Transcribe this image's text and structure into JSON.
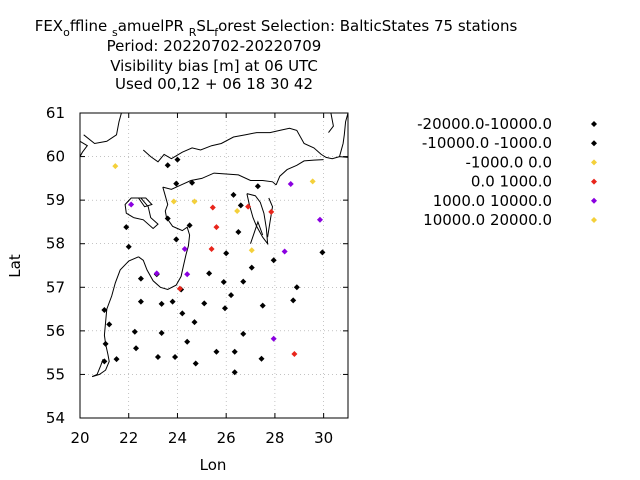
{
  "title_lines": [
    "FEX_o ffline _s amuelPR _R SL_f orest   Selection: BalticStates     75 stations",
    "Period: 20220702-20220709",
    "Visibility bias [m] at  06 UTC",
    "Used  00,12  + 06 18 30 42"
  ],
  "chart_data": {
    "type": "scatter",
    "xlabel": "Lon",
    "ylabel": "Lat",
    "xlim": [
      20,
      31
    ],
    "ylim": [
      54,
      61
    ],
    "xticks": [
      20,
      22,
      24,
      26,
      28,
      30
    ],
    "yticks": [
      54,
      55,
      56,
      57,
      58,
      59,
      60,
      61
    ],
    "grid": true,
    "legend_position": "right",
    "series": [
      {
        "name": "-20000.0-10000.0",
        "color": "#000000",
        "points": []
      },
      {
        "name": "-10000.0 -1000.0",
        "color": "#000000",
        "points": [
          [
            23.6,
            59.8
          ],
          [
            24.0,
            59.93
          ],
          [
            23.95,
            59.38
          ],
          [
            24.6,
            59.4
          ],
          [
            26.3,
            59.12
          ],
          [
            27.3,
            59.32
          ],
          [
            21.9,
            58.38
          ],
          [
            22.0,
            57.93
          ],
          [
            23.6,
            58.58
          ],
          [
            23.95,
            58.1
          ],
          [
            24.5,
            58.42
          ],
          [
            26.0,
            57.78
          ],
          [
            26.5,
            58.27
          ],
          [
            26.6,
            58.88
          ],
          [
            27.05,
            57.45
          ],
          [
            27.95,
            57.62
          ],
          [
            29.95,
            57.8
          ],
          [
            22.5,
            57.2
          ],
          [
            23.15,
            57.3
          ],
          [
            24.15,
            56.95
          ],
          [
            25.3,
            57.32
          ],
          [
            25.9,
            57.12
          ],
          [
            26.7,
            57.13
          ],
          [
            22.5,
            56.67
          ],
          [
            23.35,
            56.62
          ],
          [
            23.8,
            56.67
          ],
          [
            24.2,
            56.4
          ],
          [
            24.7,
            56.2
          ],
          [
            25.1,
            56.63
          ],
          [
            25.95,
            56.52
          ],
          [
            26.2,
            56.82
          ],
          [
            27.5,
            56.58
          ],
          [
            28.75,
            56.7
          ],
          [
            28.9,
            57.0
          ],
          [
            21.0,
            56.48
          ],
          [
            21.2,
            56.15
          ],
          [
            21.05,
            55.7
          ],
          [
            21.0,
            55.3
          ],
          [
            21.5,
            55.35
          ],
          [
            22.25,
            55.98
          ],
          [
            22.3,
            55.6
          ],
          [
            23.2,
            55.4
          ],
          [
            23.35,
            55.95
          ],
          [
            23.9,
            55.4
          ],
          [
            24.4,
            55.75
          ],
          [
            24.75,
            55.25
          ],
          [
            25.6,
            55.52
          ],
          [
            26.35,
            55.52
          ],
          [
            26.35,
            55.05
          ],
          [
            26.7,
            55.93
          ],
          [
            27.45,
            55.36
          ]
        ]
      },
      {
        "name": "-1000.0 0.0",
        "color": "#f4d03a",
        "points": [
          [
            21.45,
            59.78
          ],
          [
            23.85,
            58.97
          ],
          [
            24.7,
            58.97
          ],
          [
            26.45,
            58.75
          ],
          [
            27.05,
            57.85
          ],
          [
            29.55,
            59.43
          ]
        ]
      },
      {
        "name": "0.0 1000.0",
        "color": "#e8251b",
        "points": [
          [
            24.1,
            56.97
          ],
          [
            25.4,
            57.88
          ],
          [
            25.45,
            58.83
          ],
          [
            25.6,
            58.38
          ],
          [
            26.9,
            58.85
          ],
          [
            27.85,
            58.73
          ],
          [
            28.8,
            55.47
          ]
        ]
      },
      {
        "name": "1000.0 10000.0",
        "color": "#8a00e0",
        "points": [
          [
            22.1,
            58.9
          ],
          [
            23.15,
            57.32
          ],
          [
            24.3,
            57.88
          ],
          [
            24.4,
            57.3
          ],
          [
            27.95,
            55.82
          ],
          [
            28.4,
            57.82
          ],
          [
            28.65,
            59.37
          ],
          [
            29.85,
            58.55
          ]
        ]
      },
      {
        "name": "10000.0 20000.0",
        "color": "#f4d03a",
        "points": []
      }
    ]
  },
  "map_coastlines": [
    [
      [
        20.0,
        60.35
      ],
      [
        20.3,
        60.25
      ],
      [
        20.1,
        60.1
      ],
      [
        20.0,
        60.0
      ]
    ],
    [
      [
        20.15,
        60.5
      ],
      [
        20.6,
        60.3
      ],
      [
        21.1,
        60.35
      ],
      [
        21.5,
        60.5
      ],
      [
        21.6,
        60.8
      ],
      [
        21.7,
        61.0
      ]
    ],
    [
      [
        22.6,
        60.15
      ],
      [
        22.9,
        60.0
      ],
      [
        23.2,
        59.88
      ],
      [
        23.45,
        60.05
      ],
      [
        23.75,
        59.95
      ],
      [
        24.2,
        60.1
      ],
      [
        24.6,
        60.2
      ],
      [
        24.95,
        60.15
      ],
      [
        25.4,
        60.25
      ],
      [
        25.8,
        60.3
      ],
      [
        26.3,
        60.45
      ],
      [
        26.8,
        60.5
      ],
      [
        27.25,
        60.55
      ],
      [
        27.8,
        60.55
      ],
      [
        28.2,
        60.6
      ],
      [
        28.6,
        60.65
      ],
      [
        28.9,
        60.6
      ],
      [
        29.2,
        60.3
      ],
      [
        29.6,
        60.2
      ],
      [
        29.9,
        60.05
      ],
      [
        30.1,
        59.98
      ],
      [
        30.35,
        59.95
      ],
      [
        30.65,
        60.0
      ],
      [
        31.0,
        59.98
      ]
    ],
    [
      [
        30.65,
        60.0
      ],
      [
        30.8,
        60.3
      ],
      [
        30.85,
        60.5
      ],
      [
        30.9,
        60.8
      ],
      [
        31.0,
        61.0
      ]
    ],
    [
      [
        23.4,
        59.3
      ],
      [
        23.75,
        59.25
      ],
      [
        24.15,
        59.35
      ],
      [
        24.55,
        59.45
      ],
      [
        25.0,
        59.5
      ],
      [
        25.5,
        59.62
      ],
      [
        26.0,
        59.6
      ],
      [
        26.5,
        59.58
      ],
      [
        27.0,
        59.45
      ],
      [
        27.5,
        59.45
      ],
      [
        27.9,
        59.42
      ],
      [
        28.05,
        59.35
      ]
    ],
    [
      [
        28.05,
        59.35
      ],
      [
        28.2,
        59.55
      ],
      [
        28.5,
        59.7
      ],
      [
        28.9,
        59.8
      ],
      [
        29.2,
        59.9
      ],
      [
        29.6,
        59.92
      ],
      [
        30.0,
        59.93
      ]
    ],
    [
      [
        23.4,
        59.3
      ],
      [
        23.5,
        59.1
      ],
      [
        23.6,
        58.9
      ],
      [
        23.5,
        58.75
      ],
      [
        23.55,
        58.6
      ],
      [
        23.8,
        58.4
      ],
      [
        24.0,
        58.35
      ],
      [
        24.2,
        58.3
      ],
      [
        24.4,
        58.38
      ],
      [
        24.5,
        58.2
      ],
      [
        24.45,
        57.95
      ],
      [
        24.35,
        57.75
      ],
      [
        24.25,
        57.5
      ],
      [
        24.15,
        57.25
      ],
      [
        23.95,
        57.05
      ],
      [
        23.6,
        56.95
      ],
      [
        23.3,
        57.0
      ],
      [
        23.0,
        57.15
      ],
      [
        22.75,
        57.4
      ],
      [
        22.6,
        57.62
      ],
      [
        22.4,
        57.7
      ]
    ],
    [
      [
        22.4,
        57.7
      ],
      [
        22.0,
        57.6
      ],
      [
        21.65,
        57.4
      ],
      [
        21.45,
        57.1
      ],
      [
        21.3,
        56.8
      ],
      [
        21.1,
        56.5
      ],
      [
        21.05,
        56.2
      ],
      [
        21.0,
        55.9
      ],
      [
        21.05,
        55.7
      ],
      [
        21.15,
        55.45
      ],
      [
        21.2,
        55.3
      ],
      [
        21.05,
        55.1
      ],
      [
        20.8,
        55.0
      ],
      [
        20.5,
        54.95
      ]
    ],
    [
      [
        20.5,
        54.95
      ],
      [
        20.7,
        55.0
      ],
      [
        20.85,
        55.2
      ],
      [
        20.95,
        55.35
      ]
    ],
    [
      [
        22.2,
        58.6
      ],
      [
        22.6,
        58.55
      ],
      [
        23.0,
        58.35
      ],
      [
        23.2,
        58.45
      ],
      [
        22.9,
        58.6
      ],
      [
        22.8,
        58.85
      ],
      [
        22.5,
        59.05
      ],
      [
        22.1,
        59.05
      ],
      [
        21.85,
        58.9
      ],
      [
        21.9,
        58.7
      ],
      [
        22.2,
        58.6
      ]
    ],
    [
      [
        22.4,
        59.05
      ],
      [
        22.7,
        59.05
      ],
      [
        22.95,
        58.9
      ],
      [
        22.65,
        58.85
      ],
      [
        22.4,
        59.05
      ]
    ],
    [
      [
        26.85,
        59.15
      ],
      [
        26.95,
        58.9
      ],
      [
        27.1,
        58.6
      ],
      [
        27.25,
        58.4
      ],
      [
        27.5,
        58.15
      ],
      [
        27.7,
        58.0
      ],
      [
        27.65,
        58.35
      ],
      [
        27.55,
        58.7
      ],
      [
        27.4,
        58.95
      ],
      [
        27.2,
        59.1
      ],
      [
        26.85,
        59.15
      ]
    ],
    [
      [
        27.5,
        58.2
      ],
      [
        27.3,
        58.5
      ],
      [
        27.0,
        58.0
      ]
    ],
    [
      [
        27.7,
        58.15
      ],
      [
        27.8,
        58.5
      ],
      [
        27.9,
        58.85
      ],
      [
        27.75,
        59.05
      ]
    ],
    [
      [
        30.3,
        61.0
      ],
      [
        30.4,
        60.7
      ],
      [
        30.2,
        60.55
      ]
    ]
  ]
}
